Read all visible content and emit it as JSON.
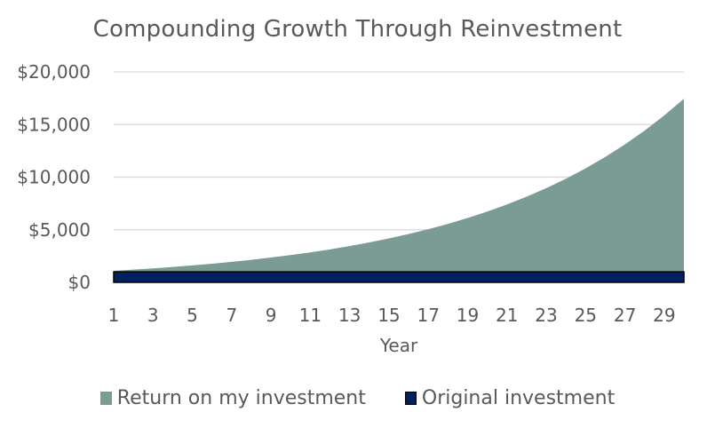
{
  "chart_data": {
    "type": "area",
    "stacked": true,
    "title": "Compounding Growth Through Reinvestment",
    "xlabel": "Year",
    "ylabel": "",
    "ylim": [
      0,
      20000
    ],
    "yticks": [
      0,
      5000,
      10000,
      15000,
      20000
    ],
    "ytick_labels": [
      "$0",
      "$5,000",
      "$10,000",
      "$15,000",
      "$20,000"
    ],
    "xticks_shown": [
      1,
      3,
      5,
      7,
      9,
      11,
      13,
      15,
      17,
      19,
      21,
      23,
      25,
      27,
      29
    ],
    "x": [
      1,
      2,
      3,
      4,
      5,
      6,
      7,
      8,
      9,
      10,
      11,
      12,
      13,
      14,
      15,
      16,
      17,
      18,
      19,
      20,
      21,
      22,
      23,
      24,
      25,
      26,
      27,
      28,
      29,
      30
    ],
    "grid": "horizontal",
    "legend_position": "bottom",
    "series": [
      {
        "name": "Original investment",
        "color": "#002060",
        "values": [
          1000,
          1000,
          1000,
          1000,
          1000,
          1000,
          1000,
          1000,
          1000,
          1000,
          1000,
          1000,
          1000,
          1000,
          1000,
          1000,
          1000,
          1000,
          1000,
          1000,
          1000,
          1000,
          1000,
          1000,
          1000,
          1000,
          1000,
          1000,
          1000,
          1000
        ]
      },
      {
        "name": "Return on my investment",
        "color": "#7A9C94",
        "values": [
          100,
          210,
          331,
          464,
          611,
          772,
          949,
          1144,
          1358,
          1594,
          1853,
          2138,
          2452,
          2797,
          3177,
          3595,
          4054,
          4560,
          5116,
          5727,
          6400,
          7140,
          7954,
          8850,
          9835,
          10918,
          12110,
          13421,
          14863,
          16449
        ]
      }
    ]
  },
  "legend": {
    "items": [
      {
        "label": "Return on my investment",
        "color": "#7A9C94"
      },
      {
        "label": "Original investment",
        "color": "#002060"
      }
    ]
  }
}
